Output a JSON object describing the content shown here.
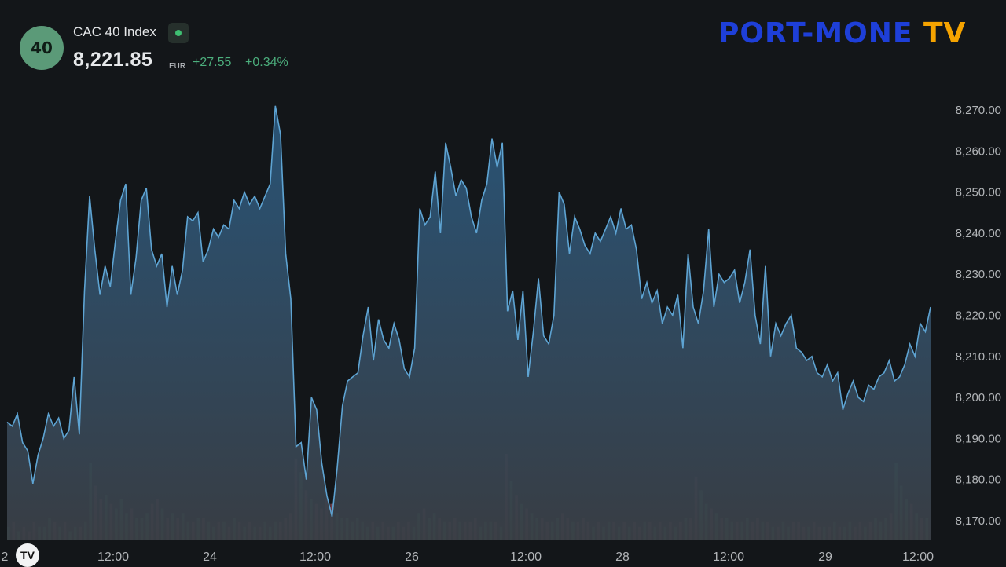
{
  "header": {
    "badge": "40",
    "title": "CAC 40 Index",
    "price": "8,221.85",
    "currency": "EUR",
    "change": "+27.55",
    "change_pct": "+0.34%"
  },
  "logo": {
    "main": "PORT-MONE",
    "suffix": "TV"
  },
  "tv_logo": "TV",
  "colors": {
    "background": "#131619",
    "line": "#5ea4d3",
    "area_top": "#2b5a80",
    "area_bottom": "#3a3f46",
    "volume_up": "#3c8c5a",
    "volume_down": "#8c4a55",
    "axis_text": "#b2b5b8",
    "positive": "#4caf7d"
  },
  "chart_data": {
    "type": "area",
    "title": "CAC 40 Index",
    "y_unit": "EUR",
    "ylim": [
      8166,
      8276
    ],
    "y_ticks": [
      "8,270.00",
      "8,260.00",
      "8,250.00",
      "8,240.00",
      "8,230.00",
      "8,220.00",
      "8,210.00",
      "8,200.00",
      "8,190.00",
      "8,180.00",
      "8,170.00"
    ],
    "x_ticks": [
      "2",
      "12:00",
      "24",
      "12:00",
      "26",
      "12:00",
      "28",
      "12:00",
      "29",
      "12:00"
    ],
    "grid": false,
    "legend": "none",
    "series": [
      {
        "values": [
          8194,
          8193,
          8196,
          8189,
          8187,
          8179,
          8186,
          8190,
          8196,
          8193,
          8195,
          8190,
          8192,
          8205,
          8191,
          8226,
          8249,
          8236,
          8225,
          8232,
          8227,
          8238,
          8248,
          8252,
          8225,
          8234,
          8248,
          8251,
          8236,
          8232,
          8235,
          8222,
          8232,
          8225,
          8231,
          8244,
          8243,
          8245,
          8233,
          8236,
          8241,
          8239,
          8242,
          8241,
          8248,
          8246,
          8250,
          8247,
          8249,
          8246,
          8249,
          8252,
          8271,
          8264,
          8235,
          8224,
          8188,
          8189,
          8180,
          8200,
          8197,
          8184,
          8176,
          8171,
          8183,
          8198,
          8204,
          8205,
          8206,
          8215,
          8222,
          8209,
          8219,
          8214,
          8212,
          8218,
          8214,
          8207,
          8205,
          8212,
          8246,
          8242,
          8244,
          8255,
          8240,
          8262,
          8256,
          8249,
          8253,
          8251,
          8244,
          8240,
          8248,
          8252,
          8263,
          8256,
          8262,
          8221,
          8226,
          8214,
          8226,
          8205,
          8216,
          8229,
          8215,
          8213,
          8220,
          8250,
          8247,
          8235,
          8244,
          8241,
          8237,
          8235,
          8240,
          8238,
          8241,
          8244,
          8240,
          8246,
          8241,
          8242,
          8236,
          8224,
          8228,
          8223,
          8226,
          8218,
          8222,
          8220,
          8225,
          8212,
          8235,
          8222,
          8218,
          8226,
          8241,
          8222,
          8230,
          8228,
          8229,
          8231,
          8223,
          8228,
          8236,
          8220,
          8213,
          8232,
          8210,
          8218,
          8215,
          8218,
          8220,
          8212,
          8211,
          8209,
          8210,
          8206,
          8205,
          8208,
          8204,
          8206,
          8197,
          8201,
          8204,
          8200,
          8199,
          8203,
          8202,
          8205,
          8206,
          8209,
          8204,
          8205,
          8208,
          8213,
          8210,
          8218,
          8216,
          8222
        ]
      }
    ],
    "volume": [
      3,
      4,
      2,
      3,
      2,
      4,
      3,
      3,
      5,
      4,
      3,
      4,
      2,
      3,
      3,
      4,
      17,
      12,
      9,
      10,
      8,
      7,
      9,
      6,
      7,
      5,
      5,
      6,
      8,
      9,
      7,
      5,
      6,
      5,
      6,
      4,
      4,
      5,
      5,
      4,
      3,
      4,
      4,
      3,
      5,
      4,
      3,
      4,
      3,
      3,
      4,
      3,
      4,
      4,
      5,
      6,
      18,
      15,
      11,
      9,
      8,
      7,
      9,
      8,
      6,
      5,
      5,
      4,
      5,
      4,
      3,
      4,
      3,
      4,
      3,
      3,
      4,
      3,
      4,
      3,
      6,
      7,
      5,
      6,
      5,
      4,
      4,
      5,
      4,
      4,
      4,
      5,
      3,
      4,
      4,
      4,
      3,
      19,
      13,
      10,
      8,
      7,
      6,
      5,
      5,
      4,
      4,
      5,
      6,
      5,
      4,
      4,
      5,
      4,
      3,
      4,
      3,
      4,
      4,
      3,
      4,
      3,
      4,
      3,
      4,
      4,
      3,
      4,
      3,
      4,
      3,
      4,
      5,
      5,
      14,
      11,
      8,
      7,
      6,
      5,
      5,
      4,
      4,
      4,
      5,
      4,
      5,
      4,
      4,
      3,
      3,
      4,
      3,
      4,
      4,
      3,
      3,
      4,
      3,
      3,
      3,
      4,
      3,
      3,
      4,
      3,
      4,
      3,
      4,
      5,
      4,
      5,
      6,
      17,
      12,
      9,
      8,
      6,
      5,
      5
    ]
  }
}
